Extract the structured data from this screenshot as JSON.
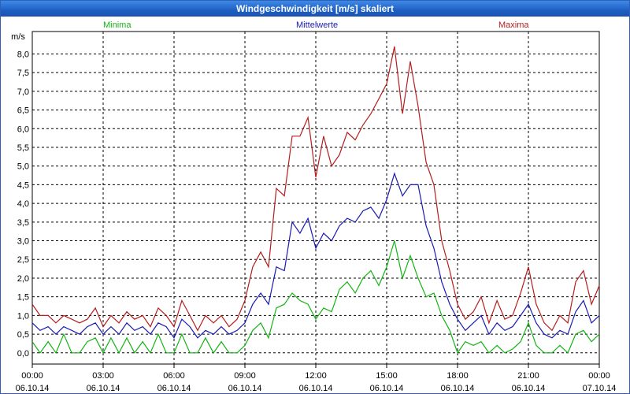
{
  "window": {
    "title": "Windgeschwindigkeit [m/s] skaliert"
  },
  "legend": [
    {
      "name": "Minima",
      "color": "#14b414"
    },
    {
      "name": "Mittelwerte",
      "color": "#1a1ab4"
    },
    {
      "name": "Maxima",
      "color": "#b41e1e"
    }
  ],
  "chart_data": {
    "type": "line",
    "title": "Windgeschwindigkeit [m/s] skaliert",
    "ylabel": "m/s",
    "xlabel": "",
    "ylim": [
      -0.3,
      8.6
    ],
    "xlim": [
      0,
      24
    ],
    "yticks": [
      0.0,
      0.5,
      1.0,
      1.5,
      2.0,
      2.5,
      3.0,
      3.5,
      4.0,
      4.5,
      5.0,
      5.5,
      6.0,
      6.5,
      7.0,
      7.5,
      8.0
    ],
    "ytick_labels": [
      "0,0",
      "0,5",
      "1,0",
      "1,5",
      "2,0",
      "2,5",
      "3,0",
      "3,5",
      "4,0",
      "4,5",
      "5,0",
      "5,5",
      "6,0",
      "6,5",
      "7,0",
      "7,5",
      "8,0"
    ],
    "xticks": [
      0,
      3,
      6,
      9,
      12,
      15,
      18,
      21,
      24
    ],
    "xtick_time": [
      "00:00",
      "03:00",
      "06:00",
      "09:00",
      "12:00",
      "15:00",
      "18:00",
      "21:00",
      "00:00"
    ],
    "xtick_date": [
      "06.10.14",
      "06.10.14",
      "06.10.14",
      "06.10.14",
      "06.10.14",
      "06.10.14",
      "06.10.14",
      "06.10.14",
      "07.10.14"
    ],
    "grid": true,
    "series": [
      {
        "name": "Maxima",
        "color": "#b41e1e",
        "x": [
          0,
          0.33,
          0.67,
          1,
          1.33,
          1.67,
          2,
          2.33,
          2.67,
          3,
          3.33,
          3.67,
          4,
          4.33,
          4.67,
          5,
          5.33,
          5.67,
          6,
          6.33,
          6.67,
          7,
          7.33,
          7.67,
          8,
          8.33,
          8.67,
          9,
          9.33,
          9.67,
          10,
          10.33,
          10.67,
          11,
          11.33,
          11.67,
          12,
          12.33,
          12.67,
          13,
          13.33,
          13.67,
          14,
          14.33,
          14.67,
          15,
          15.33,
          15.67,
          16,
          16.33,
          16.67,
          17,
          17.33,
          17.67,
          18,
          18.33,
          18.67,
          19,
          19.33,
          19.67,
          20,
          20.33,
          20.67,
          21,
          21.33,
          21.67,
          22,
          22.33,
          22.67,
          23,
          23.33,
          23.67,
          24
        ],
        "y": [
          1.3,
          1.0,
          1.0,
          0.8,
          1.0,
          0.9,
          0.8,
          0.9,
          1.2,
          0.7,
          1.0,
          0.8,
          1.1,
          0.9,
          1.0,
          0.7,
          1.2,
          1.0,
          0.7,
          1.4,
          1.0,
          0.6,
          1.0,
          0.8,
          1.0,
          0.7,
          0.9,
          1.4,
          2.3,
          2.7,
          2.3,
          4.4,
          4.2,
          5.8,
          5.8,
          6.3,
          4.7,
          5.8,
          5.0,
          5.3,
          5.9,
          5.7,
          6.1,
          6.4,
          6.8,
          7.2,
          8.2,
          6.4,
          7.8,
          6.6,
          5.1,
          4.5,
          3.0,
          2.2,
          1.3,
          0.9,
          1.1,
          1.5,
          0.8,
          1.4,
          0.9,
          1.0,
          1.6,
          2.3,
          1.3,
          0.8,
          0.6,
          1.0,
          0.8,
          1.9,
          2.2,
          1.3,
          1.8
        ]
      },
      {
        "name": "Mittelwerte",
        "color": "#1a1ab4",
        "x": [
          0,
          0.33,
          0.67,
          1,
          1.33,
          1.67,
          2,
          2.33,
          2.67,
          3,
          3.33,
          3.67,
          4,
          4.33,
          4.67,
          5,
          5.33,
          5.67,
          6,
          6.33,
          6.67,
          7,
          7.33,
          7.67,
          8,
          8.33,
          8.67,
          9,
          9.33,
          9.67,
          10,
          10.33,
          10.67,
          11,
          11.33,
          11.67,
          12,
          12.33,
          12.67,
          13,
          13.33,
          13.67,
          14,
          14.33,
          14.67,
          15,
          15.33,
          15.67,
          16,
          16.33,
          16.67,
          17,
          17.33,
          17.67,
          18,
          18.33,
          18.67,
          19,
          19.33,
          19.67,
          20,
          20.33,
          20.67,
          21,
          21.33,
          21.67,
          22,
          22.33,
          22.67,
          23,
          23.33,
          23.67,
          24
        ],
        "y": [
          0.8,
          0.6,
          0.7,
          0.5,
          0.7,
          0.6,
          0.5,
          0.7,
          0.8,
          0.5,
          0.7,
          0.5,
          0.8,
          0.6,
          0.7,
          0.5,
          0.8,
          0.7,
          0.4,
          0.9,
          0.7,
          0.4,
          0.6,
          0.5,
          0.7,
          0.5,
          0.6,
          0.8,
          1.3,
          1.6,
          1.3,
          2.3,
          2.2,
          3.5,
          3.2,
          3.6,
          2.8,
          3.2,
          3.0,
          3.4,
          3.6,
          3.5,
          3.8,
          3.9,
          3.6,
          4.1,
          4.8,
          4.2,
          4.5,
          4.5,
          3.4,
          2.8,
          1.9,
          1.3,
          0.9,
          0.6,
          0.8,
          1.0,
          0.5,
          0.8,
          0.6,
          0.7,
          1.0,
          1.3,
          0.8,
          0.5,
          0.4,
          0.6,
          0.5,
          1.1,
          1.4,
          0.8,
          1.0
        ]
      },
      {
        "name": "Minima",
        "color": "#14b414",
        "x": [
          0,
          0.33,
          0.67,
          1,
          1.33,
          1.67,
          2,
          2.33,
          2.67,
          3,
          3.33,
          3.67,
          4,
          4.33,
          4.67,
          5,
          5.33,
          5.67,
          6,
          6.33,
          6.67,
          7,
          7.33,
          7.67,
          8,
          8.33,
          8.67,
          9,
          9.33,
          9.67,
          10,
          10.33,
          10.67,
          11,
          11.33,
          11.67,
          12,
          12.33,
          12.67,
          13,
          13.33,
          13.67,
          14,
          14.33,
          14.67,
          15,
          15.33,
          15.67,
          16,
          16.33,
          16.67,
          17,
          17.33,
          17.67,
          18,
          18.33,
          18.67,
          19,
          19.33,
          19.67,
          20,
          20.33,
          20.67,
          21,
          21.33,
          21.67,
          22,
          22.33,
          22.67,
          23,
          23.33,
          23.67,
          24
        ],
        "y": [
          0.3,
          0.0,
          0.3,
          0.0,
          0.5,
          0.0,
          0.0,
          0.3,
          0.4,
          0.0,
          0.4,
          0.0,
          0.4,
          0.0,
          0.3,
          0.0,
          0.5,
          0.0,
          0.0,
          0.5,
          0.0,
          0.0,
          0.4,
          0.0,
          0.3,
          0.0,
          0.0,
          0.2,
          0.6,
          0.8,
          0.4,
          1.2,
          1.3,
          1.6,
          1.4,
          1.3,
          0.9,
          1.2,
          1.1,
          1.7,
          1.9,
          1.6,
          2.0,
          2.2,
          1.8,
          2.3,
          3.0,
          2.0,
          2.6,
          2.0,
          1.5,
          1.6,
          1.0,
          0.6,
          0.0,
          0.3,
          0.2,
          0.3,
          0.0,
          0.2,
          0.0,
          0.1,
          0.3,
          0.8,
          0.2,
          0.0,
          0.0,
          0.2,
          0.0,
          0.5,
          0.6,
          0.3,
          0.5
        ]
      }
    ]
  }
}
